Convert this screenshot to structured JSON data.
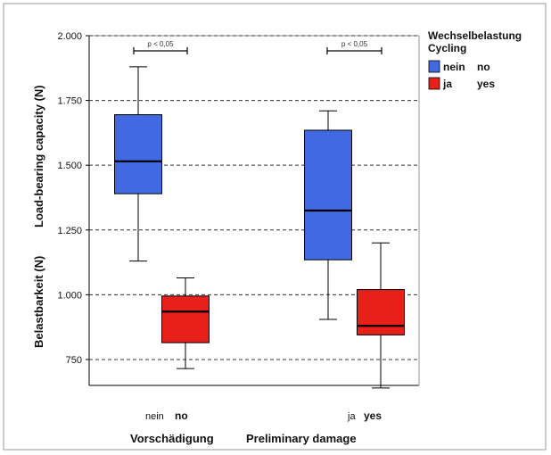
{
  "chart_data": {
    "type": "box",
    "ylabel_de": "Belastbarkeit (N)",
    "ylabel_en": "Load-bearing capacity (N)",
    "xlabel_de": "Vorschädigung",
    "xlabel_en": "Preliminary damage",
    "ylim": [
      650,
      2000
    ],
    "yticks": [
      750,
      1000,
      1250,
      1500,
      1750,
      2000
    ],
    "ytick_labels": [
      "750",
      "1.000",
      "1.250",
      "1.500",
      "1.750",
      "2.000"
    ],
    "grid": "dashed horizontal",
    "legend_title_de": "Wechselbelastung",
    "legend_title_en": "Cycling",
    "legend_position": "right",
    "categories": [
      {
        "de": "nein",
        "en": "no"
      },
      {
        "de": "ja",
        "en": "yes"
      }
    ],
    "series": [
      {
        "name_de": "nein",
        "name_en": "no",
        "color": "#4169e1",
        "boxes": [
          {
            "min": 1130,
            "q1": 1390,
            "median": 1515,
            "q3": 1695,
            "max": 1880
          },
          {
            "min": 905,
            "q1": 1135,
            "median": 1325,
            "q3": 1635,
            "max": 1710
          }
        ]
      },
      {
        "name_de": "ja",
        "name_en": "yes",
        "color": "#e8201a",
        "boxes": [
          {
            "min": 715,
            "q1": 815,
            "median": 935,
            "q3": 995,
            "max": 1065
          },
          {
            "min": 640,
            "q1": 845,
            "median": 880,
            "q3": 1020,
            "max": 1200
          }
        ]
      }
    ],
    "annotations": [
      "p < 0,05",
      "p < 0,05"
    ]
  }
}
